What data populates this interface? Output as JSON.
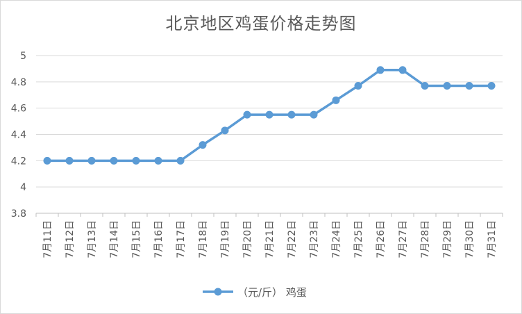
{
  "chart_data": {
    "type": "line",
    "title": "北京地区鸡蛋价格走势图",
    "xlabel": "",
    "ylabel": "",
    "categories": [
      "7月11日",
      "7月12日",
      "7月13日",
      "7月14日",
      "7月15日",
      "7月16日",
      "7月17日",
      "7月18日",
      "7月19日",
      "7月20日",
      "7月21日",
      "7月22日",
      "7月23日",
      "7月24日",
      "7月25日",
      "7月26日",
      "7月27日",
      "7月28日",
      "7月29日",
      "7月30日",
      "7月31日"
    ],
    "series": [
      {
        "name": "（元/斤） 鸡蛋",
        "values": [
          4.2,
          4.2,
          4.2,
          4.2,
          4.2,
          4.2,
          4.2,
          4.32,
          4.43,
          4.55,
          4.55,
          4.55,
          4.55,
          4.66,
          4.77,
          4.89,
          4.89,
          4.77,
          4.77,
          4.77,
          4.77
        ],
        "color": "#5b9bd5"
      }
    ],
    "ylim": [
      3.8,
      5
    ],
    "yticks": [
      "3.8",
      "4",
      "4.2",
      "4.4",
      "4.6",
      "4.8",
      "5"
    ],
    "grid": true,
    "legend": "bottom"
  }
}
